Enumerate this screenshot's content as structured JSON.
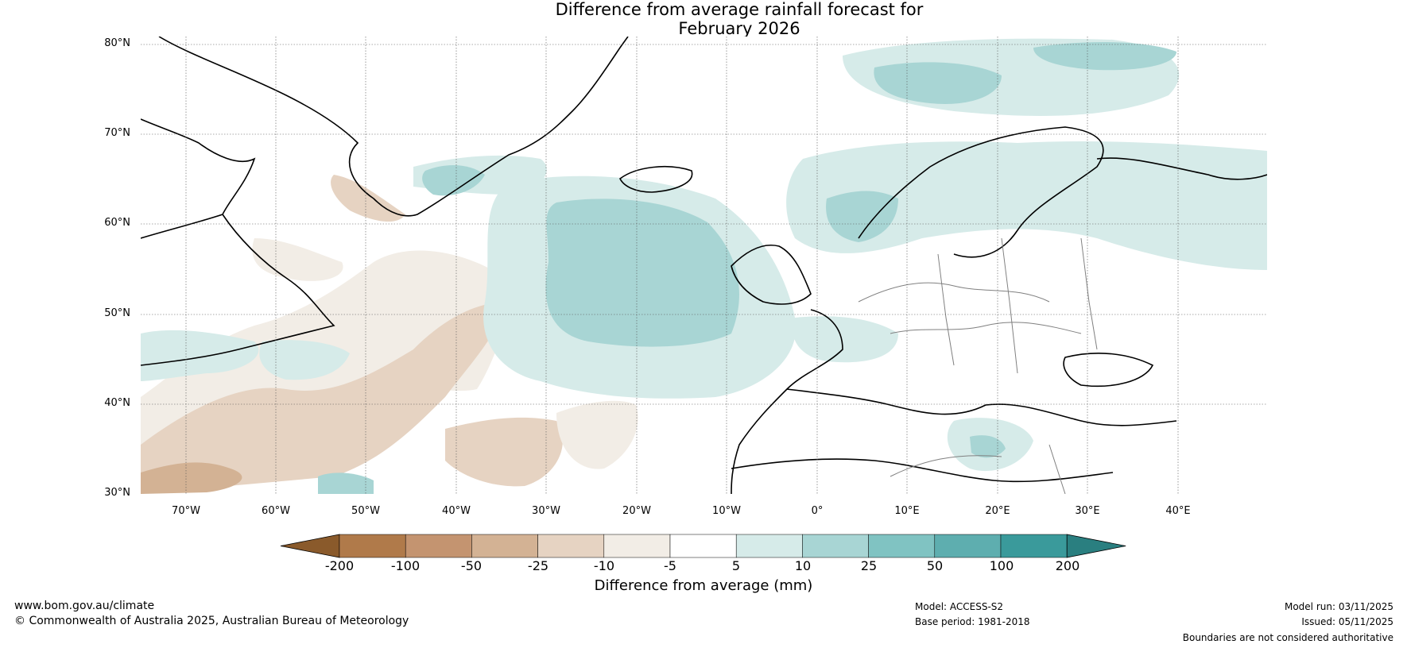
{
  "title": {
    "line1": "Difference from average rainfall forecast for",
    "line2": "February 2026"
  },
  "map": {
    "region": "North Atlantic and Europe",
    "ocean_color": "#ffffff",
    "lat_labels": [
      "80°N",
      "70°N",
      "60°N",
      "50°N",
      "40°N",
      "30°N"
    ],
    "lon_labels": [
      "70°W",
      "60°W",
      "50°W",
      "40°W",
      "30°W",
      "20°W",
      "10°W",
      "0°",
      "10°E",
      "20°E",
      "30°E",
      "40°E"
    ]
  },
  "colorbar": {
    "label": "Difference from average (mm)",
    "ticks": [
      "-200",
      "-100",
      "-50",
      "-25",
      "-10",
      "-5",
      "5",
      "10",
      "25",
      "50",
      "100",
      "200"
    ],
    "colors": [
      "#8a5a2b",
      "#b07a4a",
      "#c49470",
      "#d3b294",
      "#e6d3c2",
      "#f2ede6",
      "#ffffff",
      "#d6ebe9",
      "#a8d5d4",
      "#80c3c2",
      "#5eaeaf",
      "#3a9a9b",
      "#2a7f80"
    ]
  },
  "footer": {
    "website": "www.bom.gov.au/climate",
    "copyright": "© Commonwealth of Australia 2025, Australian Bureau of Meteorology",
    "model": "Model: ACCESS-S2",
    "base_period": "Base period: 1981-2018",
    "model_run": "Model run: 03/11/2025",
    "issued": "Issued: 05/11/2025",
    "disclaimer": "Boundaries are not considered authoritative"
  }
}
